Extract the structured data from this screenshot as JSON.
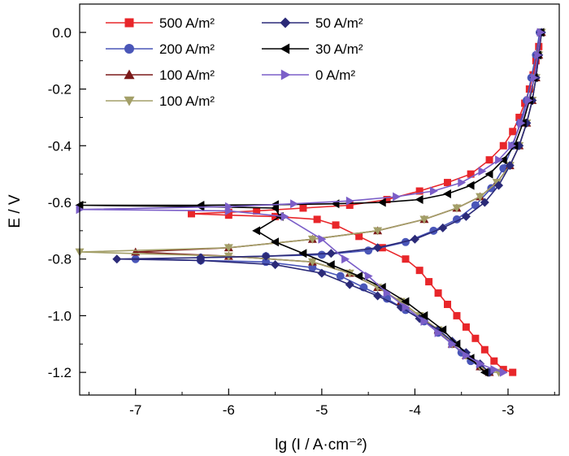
{
  "chart_data": {
    "type": "line",
    "title": "",
    "xlabel": "lg (I / A·cm⁻²)",
    "ylabel": "E / V",
    "xlim": [
      -7.6,
      -2.45
    ],
    "ylim": [
      -1.28,
      0.1
    ],
    "xticks": [
      -7,
      -6,
      -5,
      -4,
      -3
    ],
    "yticks": [
      0.0,
      -0.2,
      -0.4,
      -0.6,
      -0.8,
      -1.0,
      -1.2
    ],
    "xtick_labels": [
      "-7",
      "-6",
      "-5",
      "-4",
      "-3"
    ],
    "ytick_labels": [
      "0.0",
      "-0.2",
      "-0.4",
      "-0.6",
      "-0.8",
      "-1.0",
      "-1.2"
    ],
    "grid": false,
    "legend_position": "top-left",
    "series": [
      {
        "name": "500 A/m²",
        "color": "#e8262a",
        "marker": "square",
        "x": [
          -2.65,
          -2.67,
          -2.7,
          -2.73,
          -2.77,
          -2.82,
          -2.88,
          -2.95,
          -3.05,
          -3.2,
          -3.4,
          -3.65,
          -3.95,
          -4.3,
          -4.7,
          -5.2,
          -5.7,
          -6.0,
          -6.4,
          -6.0,
          -5.5,
          -5.05,
          -4.85,
          -4.6,
          -4.35,
          -4.1,
          -3.95,
          -3.85,
          -3.75,
          -3.65,
          -3.55,
          -3.45,
          -3.35,
          -3.25,
          -3.15,
          -3.05,
          -2.95
        ],
        "y": [
          0.0,
          -0.05,
          -0.1,
          -0.15,
          -0.2,
          -0.25,
          -0.3,
          -0.35,
          -0.4,
          -0.45,
          -0.5,
          -0.53,
          -0.56,
          -0.59,
          -0.61,
          -0.62,
          -0.63,
          -0.635,
          -0.64,
          -0.645,
          -0.65,
          -0.66,
          -0.68,
          -0.72,
          -0.76,
          -0.8,
          -0.84,
          -0.88,
          -0.92,
          -0.96,
          -1.0,
          -1.04,
          -1.08,
          -1.12,
          -1.16,
          -1.19,
          -1.2
        ]
      },
      {
        "name": "200 A/m²",
        "color": "#4a56b8",
        "marker": "circle",
        "x": [
          -2.66,
          -2.7,
          -2.75,
          -2.8,
          -2.87,
          -2.95,
          -3.05,
          -3.18,
          -3.35,
          -3.55,
          -3.8,
          -4.1,
          -4.5,
          -5.0,
          -5.6,
          -6.3,
          -7.0,
          -6.3,
          -5.6,
          -5.1,
          -4.8,
          -4.55,
          -4.3,
          -4.1,
          -3.9,
          -3.75,
          -3.6,
          -3.5,
          -3.4,
          -3.3,
          -3.2
        ],
        "y": [
          0.0,
          -0.08,
          -0.16,
          -0.24,
          -0.32,
          -0.4,
          -0.48,
          -0.55,
          -0.61,
          -0.66,
          -0.7,
          -0.74,
          -0.77,
          -0.785,
          -0.79,
          -0.795,
          -0.8,
          -0.805,
          -0.81,
          -0.83,
          -0.86,
          -0.9,
          -0.94,
          -0.98,
          -1.02,
          -1.06,
          -1.1,
          -1.13,
          -1.16,
          -1.18,
          -1.2
        ]
      },
      {
        "name": "100 A/m²",
        "color": "#7b1a1a",
        "marker": "triangle-up",
        "x": [
          -2.64,
          -2.67,
          -2.7,
          -2.74,
          -2.8,
          -2.88,
          -2.98,
          -3.12,
          -3.3,
          -3.55,
          -3.9,
          -4.4,
          -5.1,
          -6.0,
          -7.0,
          -6.0,
          -5.1,
          -4.7,
          -4.4,
          -4.15,
          -3.95,
          -3.75,
          -3.6,
          -3.45,
          -3.3,
          -3.2
        ],
        "y": [
          0.0,
          -0.08,
          -0.16,
          -0.24,
          -0.32,
          -0.4,
          -0.47,
          -0.53,
          -0.58,
          -0.62,
          -0.66,
          -0.7,
          -0.73,
          -0.76,
          -0.775,
          -0.79,
          -0.81,
          -0.85,
          -0.9,
          -0.95,
          -1.0,
          -1.05,
          -1.1,
          -1.14,
          -1.18,
          -1.2
        ]
      },
      {
        "name": "100 A/m²",
        "color": "#a39f68",
        "marker": "triangle-down",
        "x": [
          -2.64,
          -2.67,
          -2.7,
          -2.74,
          -2.8,
          -2.88,
          -2.98,
          -3.12,
          -3.3,
          -3.55,
          -3.9,
          -4.4,
          -5.1,
          -6.0,
          -7.6,
          -6.0,
          -5.1,
          -4.7,
          -4.4,
          -4.15,
          -3.95,
          -3.75,
          -3.6,
          -3.45,
          -3.3,
          -3.2,
          -3.1
        ],
        "y": [
          0.0,
          -0.08,
          -0.16,
          -0.24,
          -0.32,
          -0.4,
          -0.47,
          -0.53,
          -0.58,
          -0.62,
          -0.66,
          -0.7,
          -0.73,
          -0.76,
          -0.775,
          -0.79,
          -0.81,
          -0.85,
          -0.9,
          -0.95,
          -1.0,
          -1.05,
          -1.1,
          -1.14,
          -1.18,
          -1.2,
          -1.2
        ]
      },
      {
        "name": "50 A/m²",
        "color": "#2b2a78",
        "marker": "diamond",
        "x": [
          -2.64,
          -2.67,
          -2.7,
          -2.74,
          -2.8,
          -2.88,
          -2.98,
          -3.1,
          -3.25,
          -3.45,
          -3.7,
          -4.0,
          -4.4,
          -4.9,
          -5.6,
          -6.3,
          -7.2,
          -6.3,
          -5.5,
          -5.0,
          -4.7,
          -4.4,
          -4.15,
          -3.95,
          -3.75,
          -3.6,
          -3.45,
          -3.3,
          -3.2
        ],
        "y": [
          0.0,
          -0.08,
          -0.16,
          -0.24,
          -0.32,
          -0.4,
          -0.47,
          -0.54,
          -0.6,
          -0.65,
          -0.69,
          -0.73,
          -0.76,
          -0.78,
          -0.79,
          -0.795,
          -0.8,
          -0.805,
          -0.82,
          -0.85,
          -0.89,
          -0.93,
          -0.97,
          -1.01,
          -1.05,
          -1.09,
          -1.13,
          -1.17,
          -1.2
        ]
      },
      {
        "name": "30 A/m²",
        "color": "#000000",
        "marker": "triangle-left",
        "x": [
          -2.65,
          -2.68,
          -2.72,
          -2.77,
          -2.84,
          -2.93,
          -3.05,
          -3.2,
          -3.4,
          -3.65,
          -3.95,
          -4.35,
          -4.85,
          -5.5,
          -6.3,
          -7.6,
          -6.3,
          -5.5,
          -5.45,
          -5.7,
          -5.5,
          -5.2,
          -4.9,
          -4.6,
          -4.35,
          -4.1,
          -3.9,
          -3.7,
          -3.55,
          -3.4,
          -3.25
        ],
        "y": [
          0.0,
          -0.08,
          -0.16,
          -0.24,
          -0.32,
          -0.4,
          -0.45,
          -0.5,
          -0.54,
          -0.57,
          -0.59,
          -0.6,
          -0.605,
          -0.608,
          -0.61,
          -0.61,
          -0.615,
          -0.62,
          -0.65,
          -0.7,
          -0.74,
          -0.78,
          -0.82,
          -0.86,
          -0.9,
          -0.95,
          -1.0,
          -1.05,
          -1.1,
          -1.15,
          -1.2
        ]
      },
      {
        "name": "0 A/m²",
        "color": "#7b5ec8",
        "marker": "triangle-right",
        "x": [
          -2.65,
          -2.68,
          -2.72,
          -2.78,
          -2.86,
          -2.96,
          -3.1,
          -3.28,
          -3.5,
          -3.8,
          -4.2,
          -4.7,
          -5.3,
          -6.0,
          -7.6,
          -6.0,
          -5.4,
          -5.0,
          -4.75,
          -4.5,
          -4.3,
          -4.1,
          -3.9,
          -3.75,
          -3.6,
          -3.45,
          -3.3,
          -3.15,
          -3.05
        ],
        "y": [
          0.0,
          -0.08,
          -0.16,
          -0.24,
          -0.32,
          -0.4,
          -0.45,
          -0.49,
          -0.53,
          -0.56,
          -0.58,
          -0.595,
          -0.605,
          -0.615,
          -0.625,
          -0.63,
          -0.65,
          -0.73,
          -0.8,
          -0.86,
          -0.92,
          -0.97,
          -1.02,
          -1.06,
          -1.1,
          -1.14,
          -1.17,
          -1.19,
          -1.2
        ]
      }
    ]
  }
}
